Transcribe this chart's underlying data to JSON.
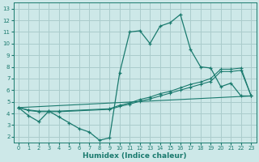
{
  "xlabel": "Humidex (Indice chaleur)",
  "xlim": [
    -0.5,
    23.5
  ],
  "ylim": [
    1.5,
    13.5
  ],
  "yticks": [
    2,
    3,
    4,
    5,
    6,
    7,
    8,
    9,
    10,
    11,
    12,
    13
  ],
  "xticks": [
    0,
    1,
    2,
    3,
    4,
    5,
    6,
    7,
    8,
    9,
    10,
    11,
    12,
    13,
    14,
    15,
    16,
    17,
    18,
    19,
    20,
    21,
    22,
    23
  ],
  "bg_color": "#cde8e8",
  "grid_color": "#aacccc",
  "line_color": "#1a7a6e",
  "line1_x": [
    0,
    1,
    2,
    3,
    4,
    5,
    6,
    7,
    8,
    9,
    10,
    11,
    12,
    13,
    14,
    15,
    16,
    17,
    18,
    19,
    20,
    21,
    22,
    23
  ],
  "line1_y": [
    4.5,
    3.8,
    3.3,
    4.2,
    3.7,
    3.2,
    2.7,
    2.4,
    1.7,
    1.9,
    7.5,
    11.0,
    11.1,
    10.0,
    11.5,
    11.8,
    12.5,
    9.5,
    8.0,
    7.9,
    6.3,
    6.6,
    5.5,
    5.5
  ],
  "line2_x": [
    0,
    1,
    2,
    3,
    4,
    9,
    10,
    11,
    12,
    13,
    14,
    15,
    16,
    17,
    18,
    19,
    20,
    21,
    22,
    23
  ],
  "line2_y": [
    4.5,
    4.3,
    4.2,
    4.2,
    4.2,
    4.4,
    4.7,
    4.9,
    5.2,
    5.4,
    5.7,
    5.9,
    6.2,
    6.5,
    6.7,
    7.0,
    7.8,
    7.8,
    7.9,
    5.5
  ],
  "line3_x": [
    0,
    1,
    2,
    3,
    4,
    9,
    10,
    11,
    12,
    13,
    14,
    15,
    16,
    17,
    18,
    19,
    20,
    21,
    22,
    23
  ],
  "line3_y": [
    4.5,
    4.25,
    4.15,
    4.15,
    4.15,
    4.35,
    4.6,
    4.8,
    5.05,
    5.25,
    5.5,
    5.75,
    6.0,
    6.25,
    6.5,
    6.75,
    7.6,
    7.6,
    7.7,
    5.5
  ],
  "line4_x": [
    0,
    23
  ],
  "line4_y": [
    4.5,
    5.5
  ]
}
